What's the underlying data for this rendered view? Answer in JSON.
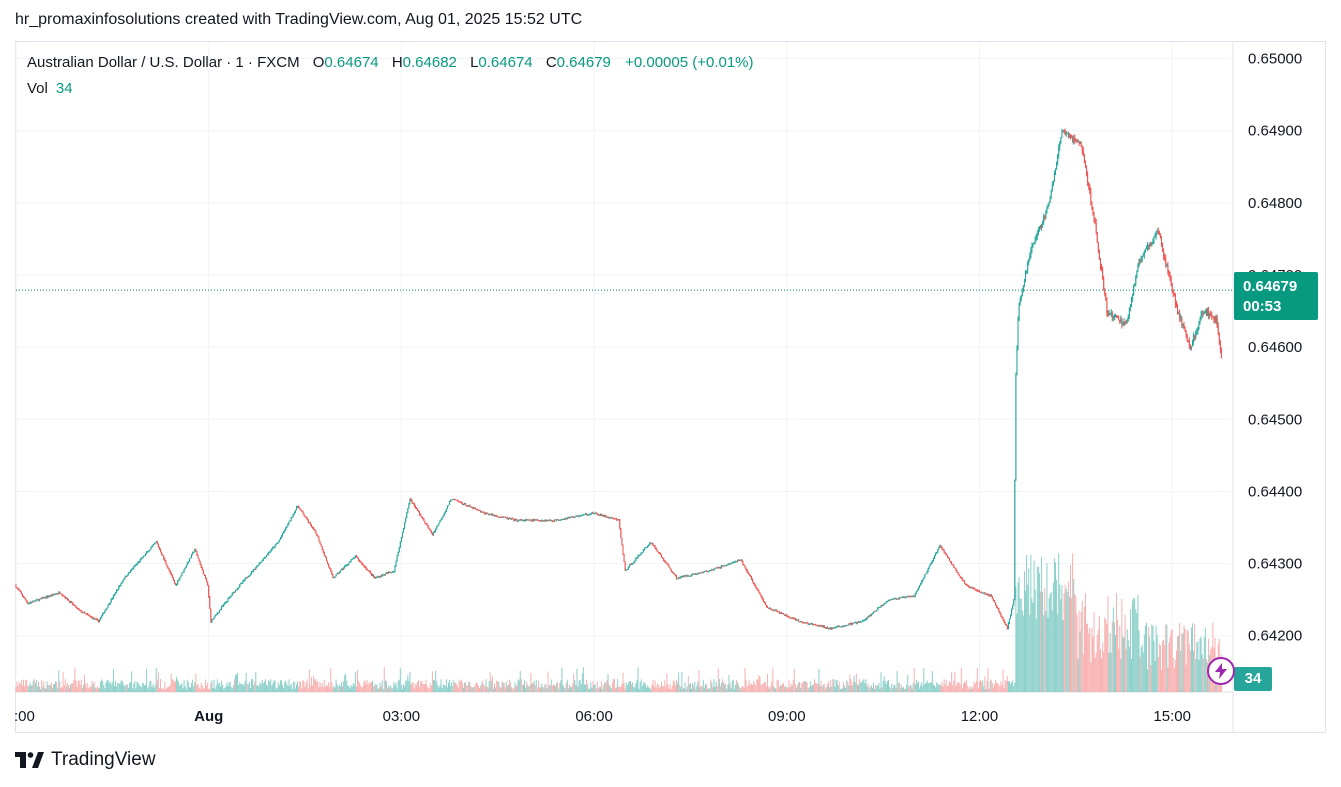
{
  "caption": "hr_promaxinfosolutions created with TradingView.com, Aug 01, 2025 15:52 UTC",
  "legend": {
    "symbol": "Australian Dollar / U.S. Dollar · 1 · FXCM",
    "o_label": "O",
    "o_value": "0.64674",
    "h_label": "H",
    "h_value": "0.64682",
    "l_label": "L",
    "l_value": "0.64674",
    "c_label": "C",
    "c_value": "0.64679",
    "change": "+0.00005 (+0.01%)",
    "vol_label": "Vol",
    "vol_value": "34"
  },
  "price_tag": {
    "price": "0.64679",
    "countdown": "00:53"
  },
  "volume_tag": "34",
  "footer": "TradingView",
  "colors": {
    "up": "#26a69a",
    "down": "#ef5350",
    "up_vol": "#80cbc4",
    "down_vol": "#f7a9a7",
    "accent": "#089981"
  },
  "chart_data": {
    "type": "candlestick",
    "title": "Australian Dollar / U.S. Dollar · 1 · FXCM",
    "y_tick_labels": [
      "0.65000",
      "0.64900",
      "0.64800",
      "0.64700",
      "0.64600",
      "0.64500",
      "0.64400",
      "0.64300",
      "0.64200"
    ],
    "y_ticks": [
      0.65,
      0.649,
      0.648,
      0.647,
      0.646,
      0.645,
      0.644,
      0.643,
      0.642
    ],
    "ylim": [
      0.64122,
      0.65023
    ],
    "x_tick_labels": [
      ":00",
      "Aug",
      "03:00",
      "06:00",
      "09:00",
      "12:00",
      "15:00"
    ],
    "x_ticks_hours": [
      -3,
      0,
      3,
      6,
      9,
      12,
      15
    ],
    "x_range_hours": [
      -3,
      15.9
    ],
    "last_price": 0.64679,
    "anchors": [
      [
        -3.0,
        0.6427
      ],
      [
        -2.8,
        0.64245
      ],
      [
        -2.3,
        0.6426
      ],
      [
        -2.0,
        0.64235
      ],
      [
        -1.7,
        0.6422
      ],
      [
        -1.3,
        0.6428
      ],
      [
        -0.8,
        0.6433
      ],
      [
        -0.5,
        0.6427
      ],
      [
        -0.2,
        0.6432
      ],
      [
        0.0,
        0.6427
      ],
      [
        0.05,
        0.6422
      ],
      [
        0.4,
        0.6426
      ],
      [
        0.7,
        0.6429
      ],
      [
        1.1,
        0.6433
      ],
      [
        1.4,
        0.6438
      ],
      [
        1.7,
        0.6434
      ],
      [
        1.95,
        0.6428
      ],
      [
        2.3,
        0.6431
      ],
      [
        2.6,
        0.6428
      ],
      [
        2.9,
        0.6429
      ],
      [
        3.15,
        0.6439
      ],
      [
        3.5,
        0.6434
      ],
      [
        3.8,
        0.6439
      ],
      [
        4.3,
        0.6437
      ],
      [
        4.8,
        0.6436
      ],
      [
        5.4,
        0.6436
      ],
      [
        6.0,
        0.6437
      ],
      [
        6.4,
        0.6436
      ],
      [
        6.5,
        0.6429
      ],
      [
        6.9,
        0.6433
      ],
      [
        7.3,
        0.6428
      ],
      [
        7.8,
        0.6429
      ],
      [
        8.3,
        0.64305
      ],
      [
        8.7,
        0.6424
      ],
      [
        9.2,
        0.6422
      ],
      [
        9.7,
        0.6421
      ],
      [
        10.2,
        0.6422
      ],
      [
        10.6,
        0.6425
      ],
      [
        11.0,
        0.64255
      ],
      [
        11.4,
        0.64325
      ],
      [
        11.8,
        0.6427
      ],
      [
        12.2,
        0.64255
      ],
      [
        12.45,
        0.6421
      ],
      [
        12.55,
        0.6425
      ],
      [
        12.58,
        0.6455
      ],
      [
        12.62,
        0.6465
      ],
      [
        12.8,
        0.6473
      ],
      [
        13.1,
        0.648
      ],
      [
        13.3,
        0.649
      ],
      [
        13.6,
        0.6488
      ],
      [
        13.8,
        0.6478
      ],
      [
        14.0,
        0.6465
      ],
      [
        14.3,
        0.6463
      ],
      [
        14.5,
        0.6472
      ],
      [
        14.8,
        0.6476
      ],
      [
        15.1,
        0.6465
      ],
      [
        15.3,
        0.646
      ],
      [
        15.5,
        0.6465
      ],
      [
        15.7,
        0.6464
      ],
      [
        15.85,
        0.6454
      ],
      [
        16.1,
        0.6463
      ],
      [
        16.3,
        0.6468
      ]
    ]
  }
}
